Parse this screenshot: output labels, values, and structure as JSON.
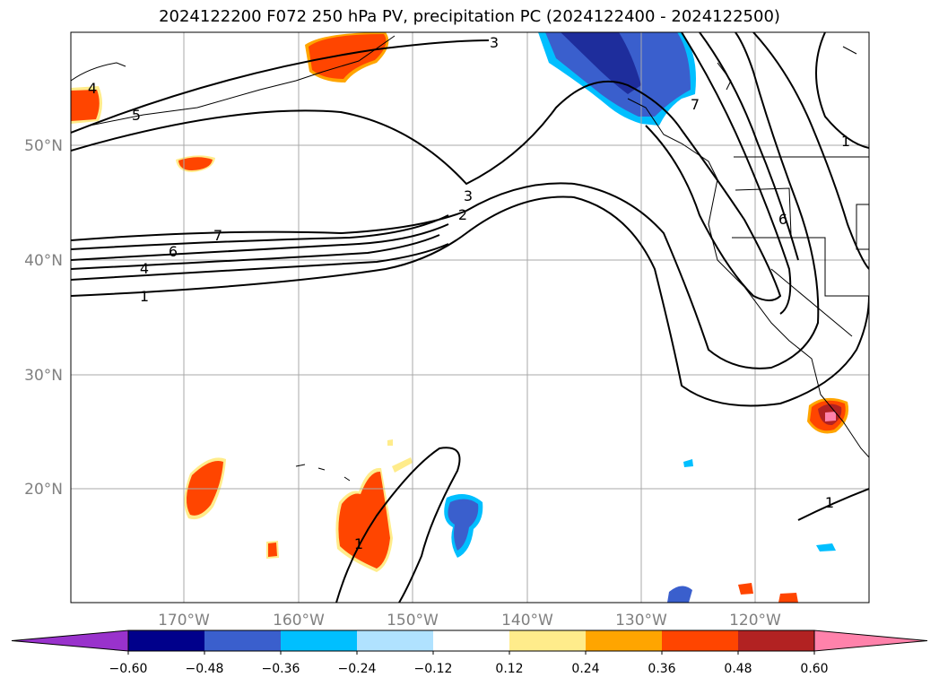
{
  "title": "2024122200 F072 250 hPa PV, precipitation PC (2024122400 - 2024122500)",
  "lat_labels": [
    "50°N",
    "40°N",
    "30°N",
    "20°N"
  ],
  "lon_labels": [
    "170°W",
    "160°W",
    "150°W",
    "140°W",
    "130°W",
    "120°W"
  ],
  "contour_labels": [
    "3",
    "5",
    "4",
    "7",
    "6",
    "4",
    "1",
    "3",
    "2",
    "7",
    "1",
    "6",
    "1",
    "1"
  ],
  "colorbar": {
    "ticks": [
      "−0.60",
      "−0.48",
      "−0.36",
      "−0.24",
      "−0.12",
      "0.12",
      "0.24",
      "0.36",
      "0.48",
      "0.60"
    ],
    "colors": [
      "#9932cc",
      "#00008b",
      "#3a5fcd",
      "#00bfff",
      "#b0e2ff",
      "#ffffff",
      "#ffec8b",
      "#ffa500",
      "#ff4500",
      "#b22222",
      "#ff82ab"
    ]
  }
}
